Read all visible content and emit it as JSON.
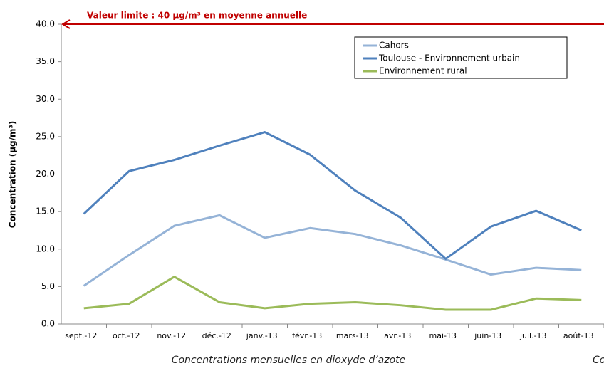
{
  "chart_data": {
    "type": "line",
    "ylabel": "Concentration (µg/m³)",
    "caption": "Concentrations mensuelles en dioxyde d’azote",
    "caption_cut": "Co",
    "categories": [
      "sept.-12",
      "oct.-12",
      "nov.-12",
      "déc.-12",
      "janv.-13",
      "févr.-13",
      "mars-13",
      "avr.-13",
      "mai-13",
      "juin-13",
      "juil.-13",
      "août-13"
    ],
    "series": [
      {
        "name": "Cahors",
        "color": "#95b3d7",
        "values": [
          5.1,
          9.2,
          13.1,
          14.5,
          11.5,
          12.8,
          12.0,
          10.5,
          8.6,
          6.6,
          7.5,
          7.2
        ]
      },
      {
        "name": "Toulouse - Environnement urbain",
        "color": "#4f81bd",
        "values": [
          14.7,
          20.4,
          21.9,
          23.8,
          25.6,
          22.6,
          17.8,
          14.2,
          8.7,
          13.0,
          15.1,
          12.5
        ]
      },
      {
        "name": "Environnement rural",
        "color": "#9bbb59",
        "values": [
          2.1,
          2.7,
          6.3,
          2.9,
          2.1,
          2.7,
          2.9,
          2.5,
          1.9,
          1.9,
          3.4,
          3.2
        ]
      }
    ],
    "ylim": [
      0,
      40
    ],
    "yticks": [
      {
        "value": 0,
        "label": "0.0"
      },
      {
        "value": 5,
        "label": "5.0"
      },
      {
        "value": 10,
        "label": "10.0"
      },
      {
        "value": 15,
        "label": "15.0"
      },
      {
        "value": 20,
        "label": "20.0"
      },
      {
        "value": 25,
        "label": "25.0"
      },
      {
        "value": 30,
        "label": "30.0"
      },
      {
        "value": 35,
        "label": "35.0"
      },
      {
        "value": 40,
        "label": "40.0"
      }
    ],
    "grid": false,
    "legend": "top-right",
    "limit_line": {
      "value": 40,
      "label": "Valeur limite : 40 µg/m³ en moyenne annuelle",
      "color": "#c00000"
    }
  }
}
